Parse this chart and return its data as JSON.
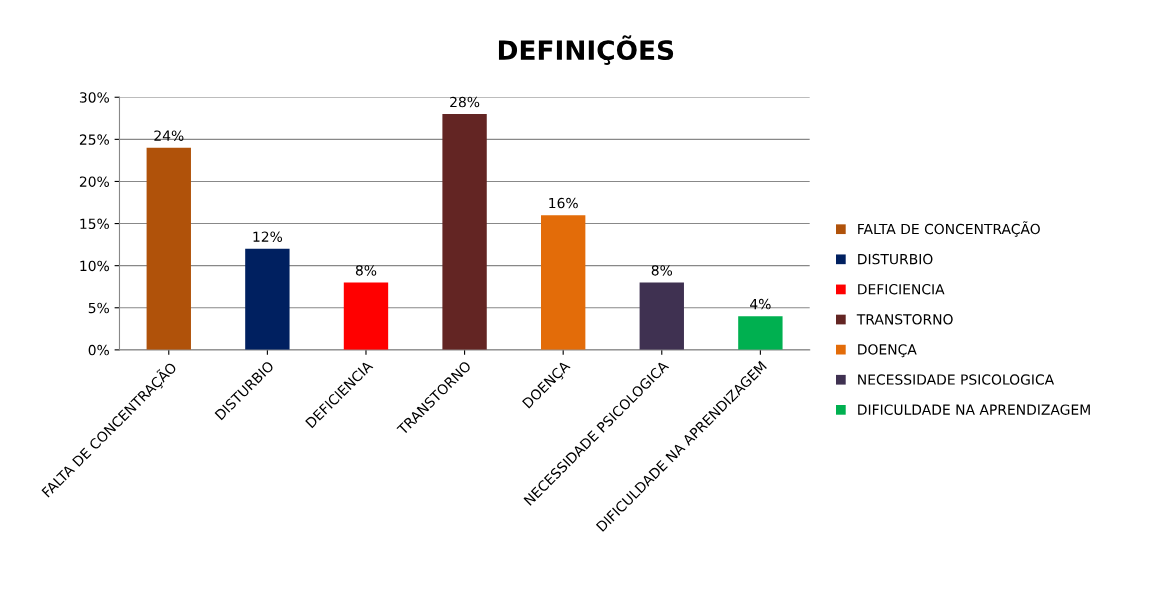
{
  "chart_data": {
    "type": "bar",
    "title": "DEFINIÇÕES",
    "stacked": true,
    "categories": [
      "FALTA DE CONCENTRAÇÃO",
      "DISTURBIO",
      "DEFICIENCIA",
      "TRANSTORNO",
      "DOENÇA",
      "NECESSIDADE PSICOLOGICA",
      "DIFICULDADE NA APRENDIZAGEM"
    ],
    "series": [
      {
        "name": "FALTA DE CONCENTRAÇÃO",
        "color": "#b0520a",
        "values": [
          24,
          null,
          null,
          null,
          null,
          null,
          null
        ],
        "value_labels": [
          "24%",
          null,
          null,
          null,
          null,
          null,
          null
        ]
      },
      {
        "name": "DISTURBIO",
        "color": "#002060",
        "values": [
          null,
          12,
          null,
          null,
          null,
          null,
          null
        ],
        "value_labels": [
          null,
          "12%",
          null,
          null,
          null,
          null,
          null
        ]
      },
      {
        "name": "DEFICIENCIA",
        "color": "#ff0000",
        "values": [
          null,
          null,
          8,
          null,
          null,
          null,
          null
        ],
        "value_labels": [
          null,
          null,
          "8%",
          null,
          null,
          null,
          null
        ]
      },
      {
        "name": "TRANSTORNO",
        "color": "#632523",
        "values": [
          null,
          null,
          null,
          28,
          null,
          null,
          null
        ],
        "value_labels": [
          null,
          null,
          null,
          "28%",
          null,
          null,
          null
        ]
      },
      {
        "name": "DOENÇA",
        "color": "#e36c09",
        "values": [
          null,
          null,
          null,
          null,
          16,
          null,
          null
        ],
        "value_labels": [
          null,
          null,
          null,
          null,
          "16%",
          null,
          null
        ]
      },
      {
        "name": "NECESSIDADE PSICOLOGICA",
        "color": "#3f3151",
        "values": [
          null,
          null,
          null,
          null,
          null,
          8,
          null
        ],
        "value_labels": [
          null,
          null,
          null,
          null,
          null,
          "8%",
          null
        ]
      },
      {
        "name": "DIFICULDADE NA APRENDIZAGEM",
        "color": "#00b050",
        "values": [
          null,
          null,
          null,
          null,
          null,
          null,
          4
        ],
        "value_labels": [
          null,
          null,
          null,
          null,
          null,
          null,
          "4%"
        ]
      }
    ],
    "ylim": [
      0,
      30
    ],
    "yticks": [
      {
        "value": 0,
        "label": "0%"
      },
      {
        "value": 5,
        "label": "5%"
      },
      {
        "value": 10,
        "label": "10%"
      },
      {
        "value": 15,
        "label": "15%"
      },
      {
        "value": 20,
        "label": "20%"
      },
      {
        "value": 25,
        "label": "25%"
      },
      {
        "value": 30,
        "label": "30%"
      }
    ],
    "grid": "y",
    "legend": "right"
  }
}
